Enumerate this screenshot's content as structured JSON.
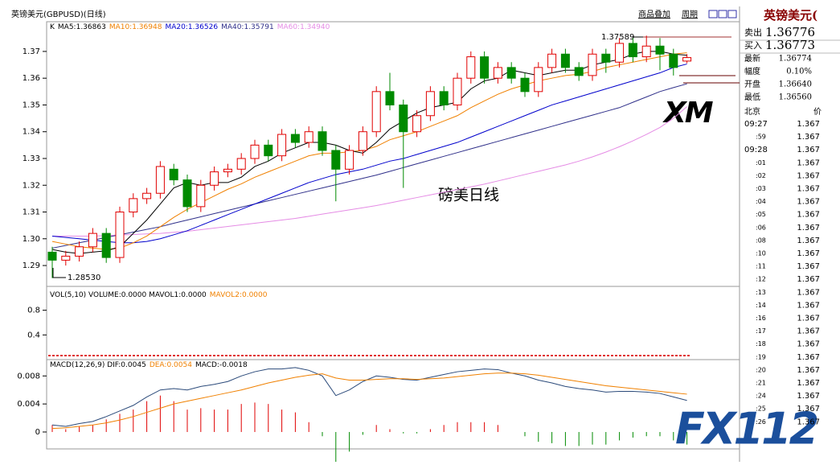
{
  "header": {
    "title": "英镑美元(GBPUSD)(日线)",
    "links": [
      "商品叠加",
      "周期"
    ]
  },
  "chart_data": [
    {
      "type": "candlestick",
      "legend_label": "K",
      "open": [
        1.295,
        1.292,
        1.2935,
        1.297,
        1.302,
        1.293,
        1.31,
        1.315,
        1.317,
        1.326,
        1.322,
        1.312,
        1.32,
        1.325,
        1.326,
        1.33,
        1.335,
        1.331,
        1.339,
        1.336,
        1.34,
        1.333,
        1.326,
        1.333,
        1.34,
        1.355,
        1.35,
        1.34,
        1.346,
        1.355,
        1.35,
        1.36,
        1.368,
        1.36,
        1.364,
        1.36,
        1.355,
        1.364,
        1.369,
        1.364,
        1.361,
        1.369,
        1.366,
        1.373,
        1.368,
        1.372,
        1.369,
        1.3664
      ],
      "high": [
        1.297,
        1.2955,
        1.299,
        1.304,
        1.304,
        1.312,
        1.317,
        1.319,
        1.329,
        1.328,
        1.324,
        1.322,
        1.327,
        1.328,
        1.332,
        1.337,
        1.337,
        1.341,
        1.341,
        1.342,
        1.342,
        1.335,
        1.335,
        1.342,
        1.357,
        1.362,
        1.352,
        1.348,
        1.357,
        1.357,
        1.362,
        1.37,
        1.37,
        1.366,
        1.366,
        1.362,
        1.366,
        1.371,
        1.371,
        1.366,
        1.371,
        1.371,
        1.375,
        1.375,
        1.3759,
        1.375,
        1.371,
        1.369
      ],
      "low": [
        1.2853,
        1.29,
        1.2915,
        1.295,
        1.291,
        1.291,
        1.308,
        1.313,
        1.315,
        1.32,
        1.31,
        1.31,
        1.318,
        1.323,
        1.324,
        1.328,
        1.329,
        1.329,
        1.334,
        1.334,
        1.331,
        1.314,
        1.324,
        1.331,
        1.338,
        1.348,
        1.319,
        1.338,
        1.344,
        1.348,
        1.348,
        1.358,
        1.358,
        1.358,
        1.358,
        1.353,
        1.353,
        1.362,
        1.362,
        1.359,
        1.359,
        1.362,
        1.364,
        1.366,
        1.366,
        1.363,
        1.361,
        1.3656
      ],
      "close": [
        1.292,
        1.2935,
        1.297,
        1.302,
        1.293,
        1.31,
        1.315,
        1.317,
        1.327,
        1.322,
        1.312,
        1.32,
        1.325,
        1.326,
        1.33,
        1.335,
        1.331,
        1.339,
        1.336,
        1.34,
        1.333,
        1.326,
        1.333,
        1.34,
        1.355,
        1.35,
        1.34,
        1.346,
        1.355,
        1.35,
        1.36,
        1.368,
        1.36,
        1.364,
        1.36,
        1.355,
        1.364,
        1.369,
        1.364,
        1.361,
        1.369,
        1.366,
        1.373,
        1.368,
        1.372,
        1.369,
        1.364,
        1.3677
      ],
      "up_color": "#e00000",
      "down_color": "#008a00",
      "series": [
        {
          "name": "MA5:1.36863",
          "color": "#000000",
          "values": [
            1.296,
            1.295,
            1.2945,
            1.295,
            1.2955,
            1.297,
            1.302,
            1.307,
            1.313,
            1.319,
            1.321,
            1.32,
            1.321,
            1.321,
            1.323,
            1.327,
            1.329,
            1.332,
            1.334,
            1.336,
            1.336,
            1.335,
            1.333,
            1.332,
            1.336,
            1.341,
            1.344,
            1.347,
            1.349,
            1.35,
            1.351,
            1.356,
            1.359,
            1.36,
            1.363,
            1.362,
            1.361,
            1.362,
            1.363,
            1.363,
            1.365,
            1.366,
            1.367,
            1.369,
            1.37,
            1.37,
            1.369,
            1.3686
          ]
        },
        {
          "name": "MA10:1.36948",
          "color": "#f08000",
          "values": [
            1.299,
            1.298,
            1.297,
            1.2965,
            1.296,
            1.2965,
            1.2985,
            1.301,
            1.3045,
            1.308,
            1.311,
            1.3135,
            1.316,
            1.3185,
            1.3205,
            1.323,
            1.325,
            1.327,
            1.329,
            1.331,
            1.332,
            1.332,
            1.3325,
            1.333,
            1.3345,
            1.337,
            1.3385,
            1.34,
            1.342,
            1.344,
            1.346,
            1.349,
            1.3515,
            1.354,
            1.356,
            1.3575,
            1.359,
            1.36,
            1.361,
            1.3615,
            1.3625,
            1.364,
            1.365,
            1.366,
            1.367,
            1.368,
            1.369,
            1.3695
          ]
        },
        {
          "name": "MA20:1.36526",
          "color": "#0000cc",
          "values": [
            1.301,
            1.3005,
            1.3,
            1.2995,
            1.299,
            1.2985,
            1.2985,
            1.299,
            1.3,
            1.3015,
            1.303,
            1.305,
            1.307,
            1.309,
            1.311,
            1.313,
            1.315,
            1.317,
            1.319,
            1.321,
            1.3225,
            1.324,
            1.325,
            1.326,
            1.3275,
            1.329,
            1.33,
            1.3315,
            1.333,
            1.3345,
            1.336,
            1.338,
            1.34,
            1.342,
            1.344,
            1.346,
            1.348,
            1.35,
            1.3515,
            1.353,
            1.3545,
            1.356,
            1.3575,
            1.359,
            1.3605,
            1.362,
            1.364,
            1.3653
          ]
        },
        {
          "name": "MA40:1.35791",
          "color": "#30308a",
          "values": [
            1.2965,
            1.2975,
            1.2985,
            1.2995,
            1.3005,
            1.3015,
            1.3025,
            1.3035,
            1.3045,
            1.3058,
            1.307,
            1.3082,
            1.3094,
            1.3106,
            1.3118,
            1.313,
            1.3142,
            1.3154,
            1.3166,
            1.3178,
            1.319,
            1.3202,
            1.3214,
            1.3226,
            1.3238,
            1.3252,
            1.3266,
            1.328,
            1.3294,
            1.3308,
            1.3322,
            1.3336,
            1.335,
            1.3364,
            1.3378,
            1.3392,
            1.3406,
            1.342,
            1.3434,
            1.3448,
            1.3462,
            1.3476,
            1.349,
            1.351,
            1.353,
            1.355,
            1.3565,
            1.3579
          ]
        },
        {
          "name": "MA60:1.34940",
          "color": "#e58ce5",
          "values": [
            1.301,
            1.301,
            1.301,
            1.301,
            1.3012,
            1.3014,
            1.3016,
            1.3018,
            1.302,
            1.3024,
            1.3028,
            1.3034,
            1.304,
            1.3046,
            1.3052,
            1.3058,
            1.3064,
            1.307,
            1.3076,
            1.3084,
            1.3092,
            1.31,
            1.3108,
            1.3116,
            1.3124,
            1.3134,
            1.3144,
            1.3154,
            1.3164,
            1.3174,
            1.3184,
            1.3194,
            1.3204,
            1.3216,
            1.3228,
            1.324,
            1.3252,
            1.3264,
            1.3276,
            1.329,
            1.3306,
            1.3324,
            1.3344,
            1.3366,
            1.339,
            1.3416,
            1.345,
            1.3494
          ]
        }
      ],
      "ylim": [
        1.2825,
        1.3808
      ],
      "yticks": [
        1.29,
        {
          "value": 1.3,
          "label": "1.30"
        },
        1.31,
        1.32,
        1.33,
        1.34,
        1.35,
        1.36,
        1.37
      ],
      "high_label": "1.37589",
      "low_label": "1.28530",
      "annotation": "磅美日线"
    },
    {
      "type": "volume",
      "legend": [
        {
          "name": "VOL(5,10) VOLUME:0.0000 MAVOL1:0.0000",
          "color": "#000000"
        },
        {
          "name": "MAVOL2:0.0000",
          "color": "#f08000"
        }
      ],
      "ylim": [
        0,
        1.16
      ],
      "yticks": [
        0.8,
        0.4
      ]
    },
    {
      "type": "macd",
      "legend": [
        {
          "name": "MACD(12,26,9) DIF:0.0045",
          "color": "#000000"
        },
        {
          "name": "DEA:0.0054",
          "color": "#f08000"
        },
        {
          "name": "MACD:-0.0018",
          "color": "#000000"
        }
      ],
      "series": [
        {
          "name": "DIF",
          "color": "#2b4a7a",
          "values": [
            0.001,
            0.0008,
            0.0012,
            0.0015,
            0.0022,
            0.003,
            0.0038,
            0.005,
            0.006,
            0.0062,
            0.006,
            0.0065,
            0.0068,
            0.0072,
            0.008,
            0.0086,
            0.009,
            0.009,
            0.0092,
            0.0088,
            0.008,
            0.0052,
            0.006,
            0.0072,
            0.008,
            0.0078,
            0.0075,
            0.0074,
            0.0078,
            0.0082,
            0.0086,
            0.0088,
            0.009,
            0.0089,
            0.0084,
            0.008,
            0.0074,
            0.007,
            0.0065,
            0.0062,
            0.006,
            0.0057,
            0.0058,
            0.0058,
            0.0057,
            0.0055,
            0.005,
            0.0045
          ]
        },
        {
          "name": "DEA",
          "color": "#f08000",
          "values": [
            0.0005,
            0.0006,
            0.0008,
            0.001,
            0.0013,
            0.0017,
            0.0022,
            0.0028,
            0.0034,
            0.004,
            0.0044,
            0.0048,
            0.0052,
            0.0056,
            0.006,
            0.0065,
            0.007,
            0.0074,
            0.0078,
            0.0081,
            0.0083,
            0.0077,
            0.0074,
            0.0074,
            0.0075,
            0.0076,
            0.0076,
            0.0075,
            0.0076,
            0.0077,
            0.0079,
            0.0081,
            0.0083,
            0.0084,
            0.0084,
            0.0083,
            0.0081,
            0.0078,
            0.0075,
            0.0072,
            0.0069,
            0.0066,
            0.0064,
            0.0062,
            0.006,
            0.0058,
            0.0056,
            0.0054
          ]
        }
      ],
      "macd": [
        0.001,
        0.0004,
        0.0008,
        0.001,
        0.0018,
        0.0026,
        0.0032,
        0.0044,
        0.0052,
        0.0044,
        0.0032,
        0.0034,
        0.0032,
        0.0032,
        0.004,
        0.0042,
        0.004,
        0.0032,
        0.0028,
        0.0014,
        -0.0006,
        -0.005,
        -0.0028,
        -0.0004,
        0.001,
        0.0004,
        -0.0002,
        -0.0002,
        0.0004,
        0.001,
        0.0014,
        0.0014,
        0.0014,
        0.001,
        0,
        -0.0006,
        -0.0014,
        -0.0016,
        -0.002,
        -0.002,
        -0.0018,
        -0.0018,
        -0.0012,
        -0.0008,
        -0.0006,
        -0.0006,
        -0.0012,
        -0.0018
      ],
      "up_color": "#e00000",
      "down_color": "#008a00",
      "ylim": [
        -0.0023,
        0.0101
      ],
      "yticks": [
        0.008,
        0.004,
        0
      ]
    }
  ],
  "quote_panel": {
    "title": "英镑美元(",
    "rows": [
      {
        "label": "卖出",
        "value": "1.36776"
      },
      {
        "label": "买入",
        "value": "1.36773"
      },
      {
        "label": "最新",
        "value": "1.36774"
      },
      {
        "label": "幅度",
        "value": "0.10%"
      },
      {
        "label": "开盘",
        "value": "1.36640"
      },
      {
        "label": "最低",
        "value": "1.36560"
      }
    ],
    "ticks_header": [
      "北京",
      "价"
    ],
    "ticks": [
      {
        "time": "09:27",
        "price": "1.367"
      },
      {
        "time": ":59",
        "price": "1.367"
      },
      {
        "time": "09:28",
        "price": "1.367"
      },
      {
        "time": ":01",
        "price": "1.367"
      },
      {
        "time": ":02",
        "price": "1.367"
      },
      {
        "time": ":03",
        "price": "1.367"
      },
      {
        "time": ":04",
        "price": "1.367"
      },
      {
        "time": ":05",
        "price": "1.367"
      },
      {
        "time": ":06",
        "price": "1.367"
      },
      {
        "time": ":08",
        "price": "1.367"
      },
      {
        "time": ":10",
        "price": "1.367"
      },
      {
        "time": ":11",
        "price": "1.367"
      },
      {
        "time": ":12",
        "price": "1.367"
      },
      {
        "time": ":13",
        "price": "1.367"
      },
      {
        "time": ":14",
        "price": "1.367"
      },
      {
        "time": ":16",
        "price": "1.367"
      },
      {
        "time": ":17",
        "price": "1.367"
      },
      {
        "time": ":18",
        "price": "1.367"
      },
      {
        "time": ":19",
        "price": "1.367"
      },
      {
        "time": ":20",
        "price": "1.367"
      },
      {
        "time": ":21",
        "price": "1.367"
      },
      {
        "time": ":24",
        "price": "1.367"
      },
      {
        "time": ":25",
        "price": "1.367"
      },
      {
        "time": ":26",
        "price": "1.367"
      }
    ]
  },
  "watermarks": [
    "XM",
    "FX112"
  ]
}
